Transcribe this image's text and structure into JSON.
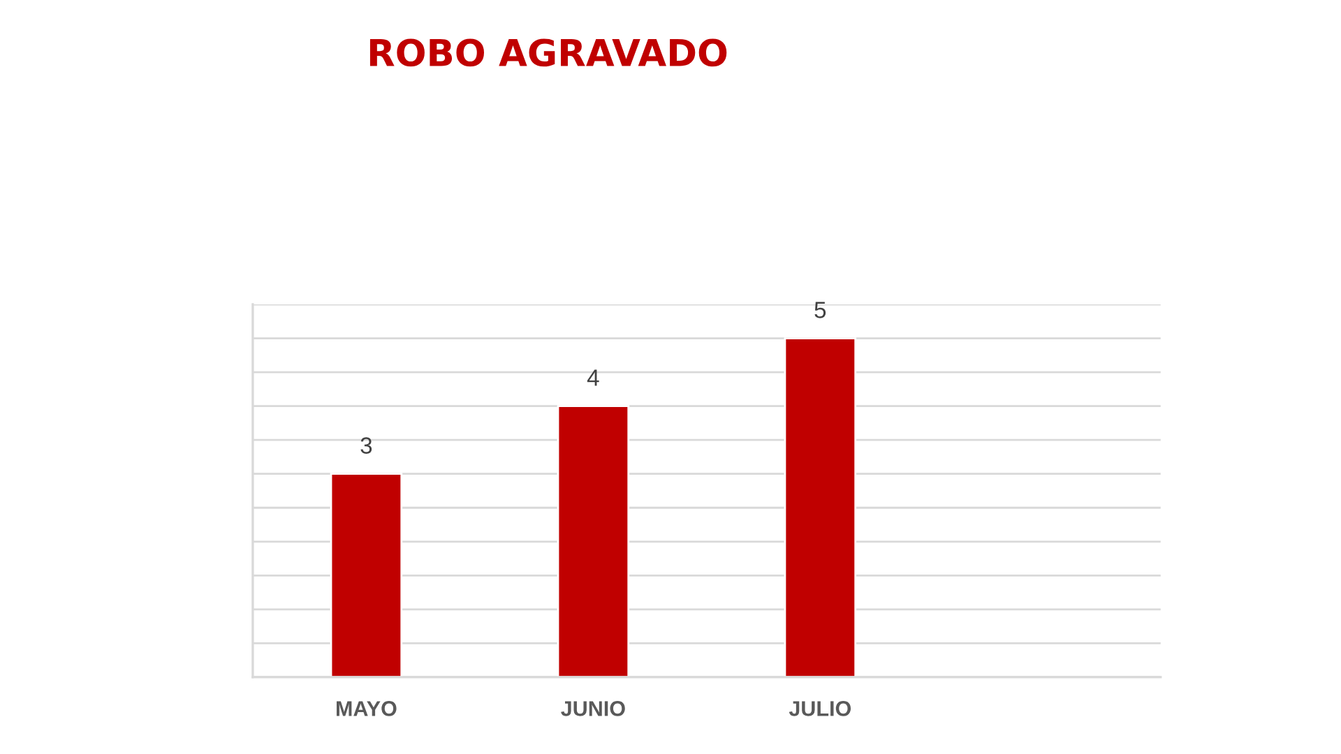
{
  "chart_data": {
    "type": "bar",
    "title": "ROBO AGRAVADO",
    "categories": [
      "MAYO",
      "JUNIO",
      "JULIO",
      null
    ],
    "values": [
      3,
      4,
      5,
      null
    ],
    "color": "#c00000",
    "ylim": [
      0,
      5.5
    ],
    "yticks": [
      {
        "value": 0,
        "label": null
      },
      {
        "value": 0.5,
        "label": null
      },
      {
        "value": 1,
        "label": null
      },
      {
        "value": 1.5,
        "label": null
      },
      {
        "value": 2,
        "label": null
      },
      {
        "value": 2.5,
        "label": null
      },
      {
        "value": 3,
        "label": null
      },
      {
        "value": 3.5,
        "label": null
      },
      {
        "value": 4,
        "label": null
      },
      {
        "value": 4.5,
        "label": null
      },
      {
        "value": 5,
        "label": null
      },
      {
        "value": 5.5,
        "label": null
      }
    ],
    "grid": "y",
    "tick_labels": "x",
    "data_labels": true
  }
}
